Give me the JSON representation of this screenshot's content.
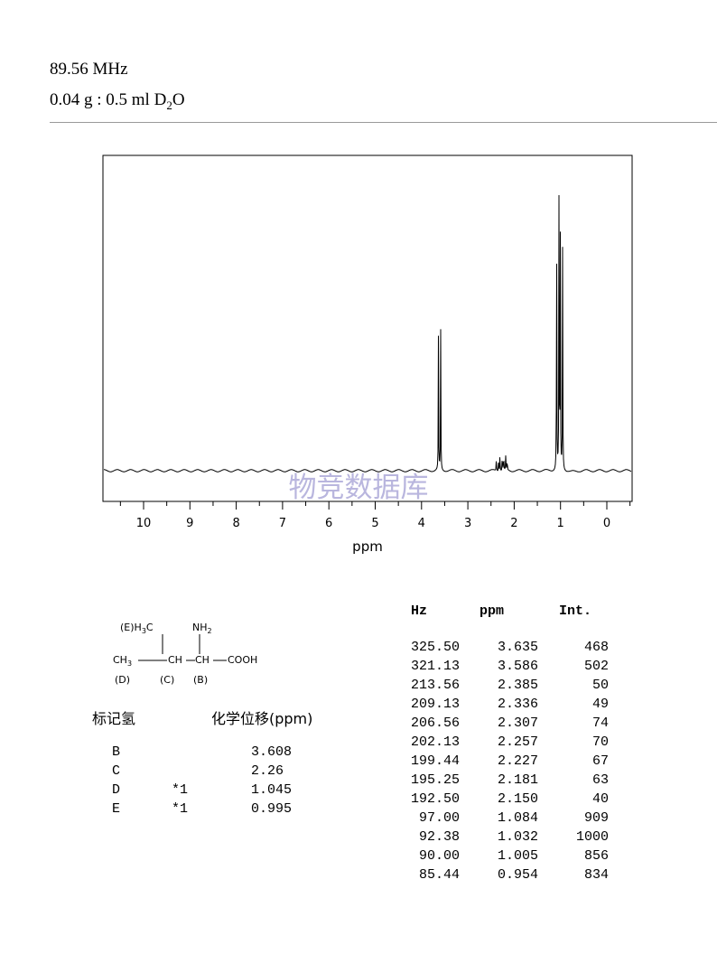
{
  "header": {
    "frequency": "89.56 MHz",
    "sample_prefix": "0.04 g : 0.5 ml D",
    "sample_sub": "2",
    "sample_suffix": "O"
  },
  "watermark": "物竞数据库",
  "chart_data": {
    "type": "line",
    "xlabel": "ppm",
    "xlim": [
      11,
      -0.55
    ],
    "x_reversed": true,
    "x_ticks": [
      10,
      9,
      8,
      7,
      6,
      5,
      4,
      3,
      2,
      1,
      0
    ],
    "x_tick_labels": [
      "10",
      "9",
      "8",
      "7",
      "6",
      "5",
      "4",
      "3",
      "2",
      "1",
      "0"
    ],
    "y_range": [
      0,
      1000
    ],
    "peaks_ppm_relative_intensity": [
      {
        "ppm": 3.635,
        "intensity": 468
      },
      {
        "ppm": 3.586,
        "intensity": 502
      },
      {
        "ppm": 2.385,
        "intensity": 50
      },
      {
        "ppm": 2.336,
        "intensity": 49
      },
      {
        "ppm": 2.307,
        "intensity": 74
      },
      {
        "ppm": 2.257,
        "intensity": 70
      },
      {
        "ppm": 2.227,
        "intensity": 67
      },
      {
        "ppm": 2.181,
        "intensity": 63
      },
      {
        "ppm": 2.15,
        "intensity": 40
      },
      {
        "ppm": 1.084,
        "intensity": 909
      },
      {
        "ppm": 1.032,
        "intensity": 1000
      },
      {
        "ppm": 1.005,
        "intensity": 856
      },
      {
        "ppm": 0.954,
        "intensity": 834
      }
    ]
  },
  "structure": {
    "e_label": "(E)H",
    "e_sub": "3",
    "e_c": "C",
    "nh": "NH",
    "nh_sub": "2",
    "ch3": "CH",
    "ch3_sub": "3",
    "ch_c": "CH",
    "ch_b": "CH",
    "cooh": "COOH",
    "label_d": "(D)",
    "label_c": "(C)",
    "label_b": "(B)"
  },
  "assignment": {
    "header_label": "标记氢",
    "header_shift": "化学位移(ppm)",
    "rows": [
      {
        "label": "B",
        "note": "",
        "shift": "3.608"
      },
      {
        "label": "C",
        "note": "",
        "shift": "2.26"
      },
      {
        "label": "D",
        "note": "*1",
        "shift": "1.045"
      },
      {
        "label": "E",
        "note": "*1",
        "shift": "0.995"
      }
    ]
  },
  "peak_table": {
    "headers": [
      "Hz",
      "ppm",
      "Int."
    ],
    "rows": [
      [
        "325.50",
        "3.635",
        "468"
      ],
      [
        "321.13",
        "3.586",
        "502"
      ],
      [
        "213.56",
        "2.385",
        "50"
      ],
      [
        "209.13",
        "2.336",
        "49"
      ],
      [
        "206.56",
        "2.307",
        "74"
      ],
      [
        "202.13",
        "2.257",
        "70"
      ],
      [
        "199.44",
        "2.227",
        "67"
      ],
      [
        "195.25",
        "2.181",
        "63"
      ],
      [
        "192.50",
        "2.150",
        "40"
      ],
      [
        "97.00",
        "1.084",
        "909"
      ],
      [
        "92.38",
        "1.032",
        "1000"
      ],
      [
        "90.00",
        "1.005",
        "856"
      ],
      [
        "85.44",
        "0.954",
        "834"
      ]
    ]
  }
}
